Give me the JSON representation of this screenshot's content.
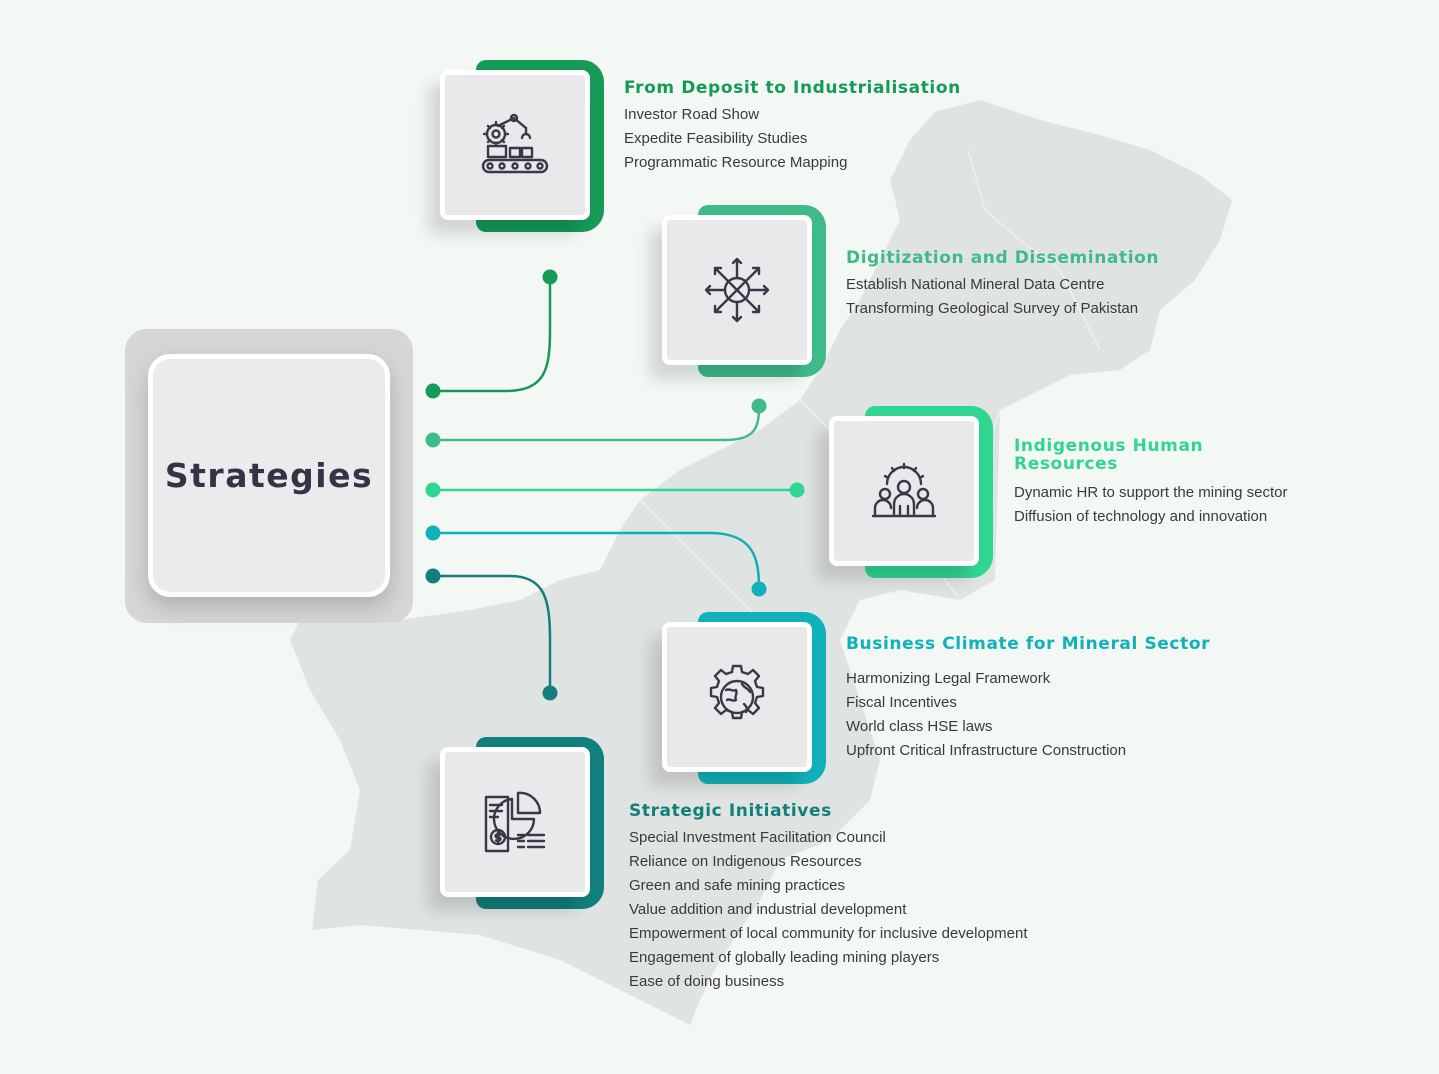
{
  "center": {
    "title": "Strategies"
  },
  "colors": {
    "s1": "#159a57",
    "s2": "#3fbb8a",
    "s3": "#31d592",
    "s4": "#10b1bb",
    "s5": "#107f7d",
    "map": "#dfe3e1",
    "icon_stroke": "#3a3747"
  },
  "strategies": [
    {
      "icon": "robotic-arm-conveyor-icon",
      "heading": "From Deposit to Industrialisation",
      "items": [
        "Investor Road Show",
        "Expedite Feasibility Studies",
        "Programmatic Resource Mapping"
      ]
    },
    {
      "icon": "network-arrows-icon",
      "heading": "Digitization and Dissemination",
      "items": [
        "Establish National Mineral Data Centre",
        "Transforming Geological Survey of Pakistan"
      ]
    },
    {
      "icon": "team-gear-icon",
      "heading": "Indigenous Human Resources",
      "heading_lines": [
        "Indigenous Human",
        "Resources"
      ],
      "items": [
        "Dynamic HR to support the mining sector",
        "Diffusion of technology and innovation"
      ]
    },
    {
      "icon": "globe-gear-icon",
      "heading": "Business Climate for Mineral Sector",
      "items": [
        "Harmonizing Legal Framework",
        "Fiscal Incentives",
        "World class HSE laws",
        "Upfront Critical Infrastructure Construction"
      ]
    },
    {
      "icon": "financial-report-icon",
      "heading": "Strategic Initiatives",
      "items": [
        "Special Investment Facilitation Council",
        "Reliance on Indigenous Resources",
        "Green and safe mining practices",
        "Value addition and industrial development",
        "Empowerment of local community for inclusive development",
        "Engagement of globally leading mining players",
        "Ease of doing business"
      ]
    }
  ]
}
